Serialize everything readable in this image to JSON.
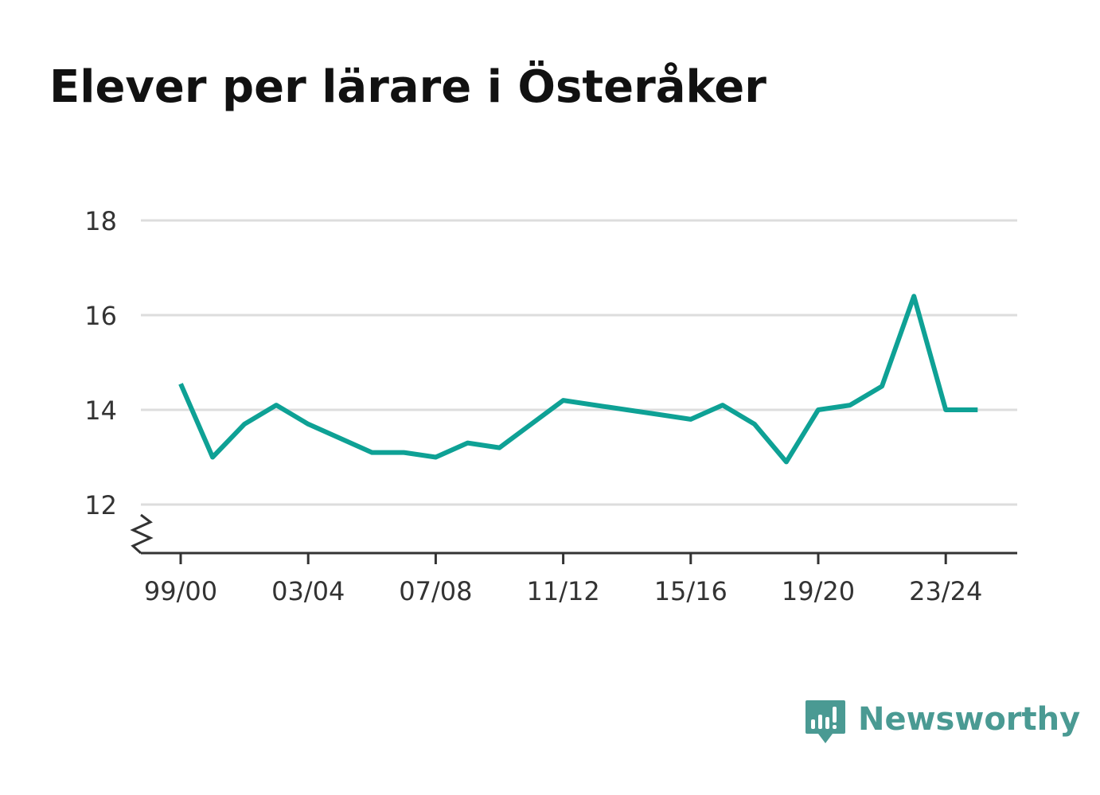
{
  "title": "Elever per lärare i Österåker",
  "brand": {
    "name": "Newsworthy",
    "icon": "newsworthy-logo-icon",
    "color": "#4a9a93"
  },
  "colors": {
    "line": "#0ea195",
    "grid": "#dddddd",
    "axis": "#333333",
    "text": "#333333",
    "title": "#111111"
  },
  "chart_data": {
    "type": "line",
    "title": "Elever per lärare i Österåker",
    "xlabel": "",
    "ylabel": "",
    "x": [
      "99/00",
      "00/01",
      "01/02",
      "02/03",
      "03/04",
      "04/05",
      "05/06",
      "06/07",
      "07/08",
      "08/09",
      "09/10",
      "10/11",
      "11/12",
      "12/13",
      "13/14",
      "14/15",
      "15/16",
      "16/17",
      "17/18",
      "18/19",
      "19/20",
      "20/21",
      "21/22",
      "22/23",
      "23/24",
      "24/25"
    ],
    "x_tick_labels": [
      "99/00",
      "03/04",
      "07/08",
      "11/12",
      "15/16",
      "19/20",
      "23/24"
    ],
    "series": [
      {
        "values": [
          14.55,
          13.0,
          13.7,
          14.1,
          13.7,
          13.4,
          13.1,
          13.1,
          13.0,
          13.3,
          13.2,
          13.7,
          14.2,
          14.1,
          14.0,
          13.9,
          13.8,
          14.1,
          13.7,
          12.9,
          14.0,
          14.1,
          14.5,
          16.4,
          14.0,
          14.0
        ]
      }
    ],
    "ylim": [
      11,
      18
    ],
    "y_ticks": [
      12,
      14,
      16,
      18
    ],
    "y_axis_break": true,
    "grid": true,
    "legend": "none"
  }
}
